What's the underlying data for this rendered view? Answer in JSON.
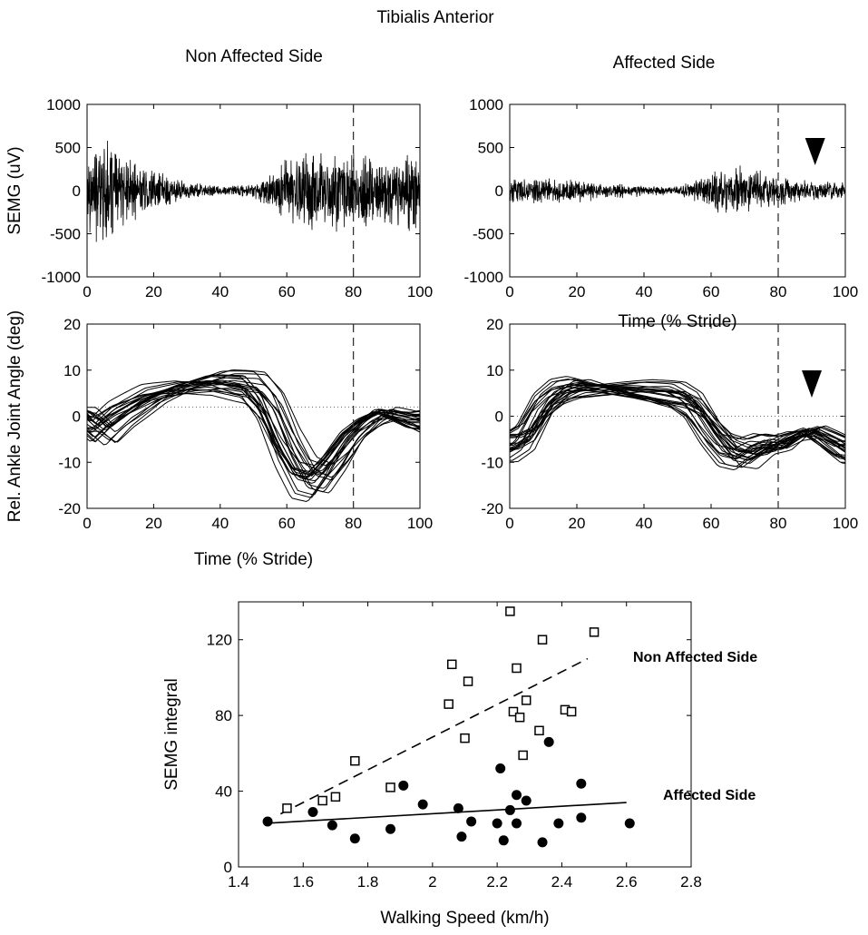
{
  "figure": {
    "title": "Tibialis Anterior",
    "left_heading": "Non Affected Side",
    "right_heading": "Affected Side"
  },
  "chart_data": [
    {
      "id": "emg-nonaffected",
      "type": "line",
      "title": "Non Affected Side",
      "xlabel": "",
      "ylabel": "SEMG (uV)",
      "xlim": [
        0,
        100
      ],
      "ylim": [
        -1000,
        1000
      ],
      "xticks": [
        0,
        20,
        40,
        60,
        80,
        100
      ],
      "yticks": [
        -1000,
        -500,
        0,
        500,
        1000
      ],
      "marker_line_x": 80,
      "envelope": {
        "x": [
          0,
          5,
          10,
          20,
          30,
          40,
          50,
          55,
          60,
          70,
          80,
          90,
          100
        ],
        "amplitude": [
          550,
          700,
          450,
          280,
          120,
          60,
          90,
          250,
          420,
          520,
          480,
          450,
          480
        ]
      }
    },
    {
      "id": "emg-affected",
      "type": "line",
      "title": "Affected Side",
      "xlabel": "Time (% Stride)",
      "ylabel": "",
      "xlim": [
        0,
        100
      ],
      "ylim": [
        -1000,
        1000
      ],
      "xticks": [
        0,
        20,
        40,
        60,
        80,
        100
      ],
      "yticks": [
        -1000,
        -500,
        0,
        500,
        1000
      ],
      "marker_line_x": 80,
      "arrow_x": 91,
      "envelope": {
        "x": [
          0,
          10,
          20,
          30,
          40,
          50,
          55,
          60,
          65,
          70,
          80,
          90,
          100
        ],
        "amplitude": [
          140,
          160,
          150,
          110,
          70,
          60,
          140,
          280,
          330,
          300,
          180,
          130,
          110
        ]
      }
    },
    {
      "id": "angle-nonaffected",
      "type": "line",
      "title": "",
      "xlabel": "Time (% Stride)",
      "ylabel": "Rel. Ankle Joint Angle (deg)",
      "xlim": [
        0,
        100
      ],
      "ylim": [
        -20,
        20
      ],
      "xticks": [
        0,
        20,
        40,
        60,
        80,
        100
      ],
      "yticks": [
        -20,
        -10,
        0,
        10,
        20
      ],
      "marker_line_x": 80,
      "baseline_y": 2,
      "mean_curve": {
        "x": [
          0,
          5,
          10,
          20,
          30,
          40,
          50,
          55,
          60,
          65,
          70,
          75,
          80,
          85,
          90,
          95,
          100
        ],
        "y": [
          0,
          -3,
          0,
          4,
          6,
          7,
          6,
          2,
          -6,
          -12,
          -13,
          -9,
          -4,
          -1,
          1,
          0,
          -1
        ]
      },
      "traces": 25
    },
    {
      "id": "angle-affected",
      "type": "line",
      "title": "",
      "xlabel": "",
      "ylabel": "",
      "xlim": [
        0,
        100
      ],
      "ylim": [
        -20,
        20
      ],
      "xticks": [
        0,
        20,
        40,
        60,
        80,
        100
      ],
      "yticks": [
        -20,
        -10,
        0,
        10,
        20
      ],
      "marker_line_x": 80,
      "baseline_y": 0,
      "arrow_x": 90,
      "mean_curve": {
        "x": [
          0,
          5,
          10,
          15,
          20,
          30,
          40,
          50,
          55,
          60,
          65,
          70,
          75,
          80,
          85,
          90,
          95,
          100
        ],
        "y": [
          -6,
          -4,
          2,
          5,
          6,
          5.5,
          5,
          4,
          2,
          -3,
          -7,
          -8,
          -6,
          -6,
          -4,
          -3,
          -5,
          -7
        ]
      },
      "traces": 25
    },
    {
      "id": "scatter-speed",
      "type": "scatter",
      "title": "",
      "xlabel": "Walking Speed (km/h)",
      "ylabel": "SEMG integral",
      "xlim": [
        1.4,
        2.8
      ],
      "ylim": [
        0,
        140
      ],
      "xticks": [
        1.4,
        1.6,
        1.8,
        2,
        2.2,
        2.4,
        2.6,
        2.8
      ],
      "xtick_labels": [
        "1.4",
        "1.6",
        "1.8",
        "2",
        "2.2",
        "2.4",
        "2.6",
        "2.8"
      ],
      "yticks": [
        0,
        40,
        80,
        120
      ],
      "series": [
        {
          "name": "Non Affected Side",
          "marker": "open-square",
          "points": [
            [
              1.55,
              31
            ],
            [
              1.66,
              35
            ],
            [
              1.7,
              37
            ],
            [
              1.76,
              56
            ],
            [
              1.87,
              42
            ],
            [
              2.05,
              86
            ],
            [
              2.06,
              107
            ],
            [
              2.1,
              68
            ],
            [
              2.11,
              98
            ],
            [
              2.24,
              135
            ],
            [
              2.25,
              82
            ],
            [
              2.26,
              105
            ],
            [
              2.27,
              79
            ],
            [
              2.28,
              59
            ],
            [
              2.29,
              88
            ],
            [
              2.33,
              72
            ],
            [
              2.34,
              120
            ],
            [
              2.41,
              83
            ],
            [
              2.43,
              82
            ],
            [
              2.5,
              124
            ]
          ],
          "fit": {
            "x": [
              1.53,
              2.48
            ],
            "y": [
              28,
              110
            ]
          }
        },
        {
          "name": "Affected Side",
          "marker": "filled-circle",
          "points": [
            [
              1.49,
              24
            ],
            [
              1.63,
              29
            ],
            [
              1.69,
              22
            ],
            [
              1.76,
              15
            ],
            [
              1.87,
              20
            ],
            [
              1.91,
              43
            ],
            [
              1.97,
              33
            ],
            [
              2.08,
              31
            ],
            [
              2.09,
              16
            ],
            [
              2.12,
              24
            ],
            [
              2.2,
              23
            ],
            [
              2.21,
              52
            ],
            [
              2.22,
              14
            ],
            [
              2.24,
              30
            ],
            [
              2.26,
              23
            ],
            [
              2.26,
              38
            ],
            [
              2.29,
              35
            ],
            [
              2.34,
              13
            ],
            [
              2.36,
              66
            ],
            [
              2.39,
              23
            ],
            [
              2.46,
              26
            ],
            [
              2.46,
              44
            ],
            [
              2.61,
              23
            ]
          ],
          "fit": {
            "x": [
              1.48,
              2.6
            ],
            "y": [
              23,
              34
            ]
          }
        }
      ]
    }
  ]
}
